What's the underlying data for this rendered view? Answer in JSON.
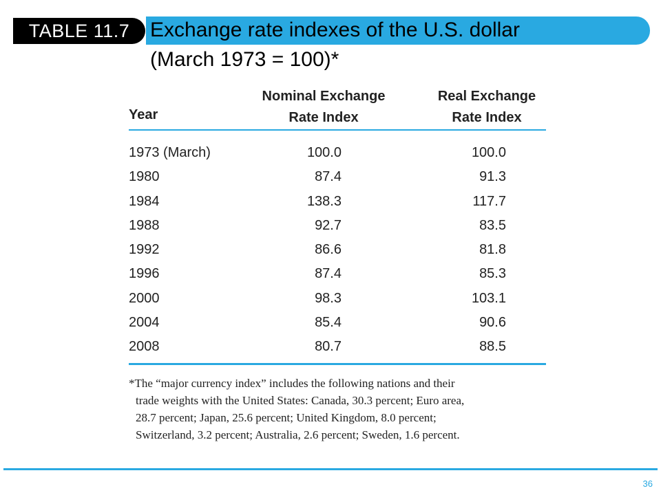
{
  "header": {
    "badge": "TABLE 11.7",
    "title_line1": "Exchange rate indexes of the U.S. dollar",
    "title_line2": "(March 1973 = 100)*"
  },
  "table": {
    "columns": {
      "year": "Year",
      "nominal_line1": "Nominal Exchange",
      "nominal_line2": "Rate Index",
      "real_line1": "Real Exchange",
      "real_line2": "Rate Index"
    },
    "rows": [
      {
        "year": "1973 (March)",
        "nominal": "100.0",
        "real": "100.0"
      },
      {
        "year": "1980",
        "nominal": "87.4",
        "real": "91.3"
      },
      {
        "year": "1984",
        "nominal": "138.3",
        "real": "117.7"
      },
      {
        "year": "1988",
        "nominal": "92.7",
        "real": "83.5"
      },
      {
        "year": "1992",
        "nominal": "86.6",
        "real": "81.8"
      },
      {
        "year": "1996",
        "nominal": "87.4",
        "real": "85.3"
      },
      {
        "year": "2000",
        "nominal": "98.3",
        "real": "103.1"
      },
      {
        "year": "2004",
        "nominal": "85.4",
        "real": "90.6"
      },
      {
        "year": "2008",
        "nominal": "80.7",
        "real": "88.5"
      }
    ]
  },
  "footnote": {
    "line1": "*The “major currency index” includes the following nations and their",
    "line2": "trade weights with the United States: Canada, 30.3 percent; Euro area,",
    "line3": "28.7 percent; Japan, 25.6 percent; United Kingdom, 8.0 percent;",
    "line4": "Switzerland, 3.2 percent; Australia, 2.6 percent; Sweden, 1.6 percent."
  },
  "page_number": "36",
  "colors": {
    "accent": "#29a9e1",
    "badge_bg": "#000000"
  }
}
